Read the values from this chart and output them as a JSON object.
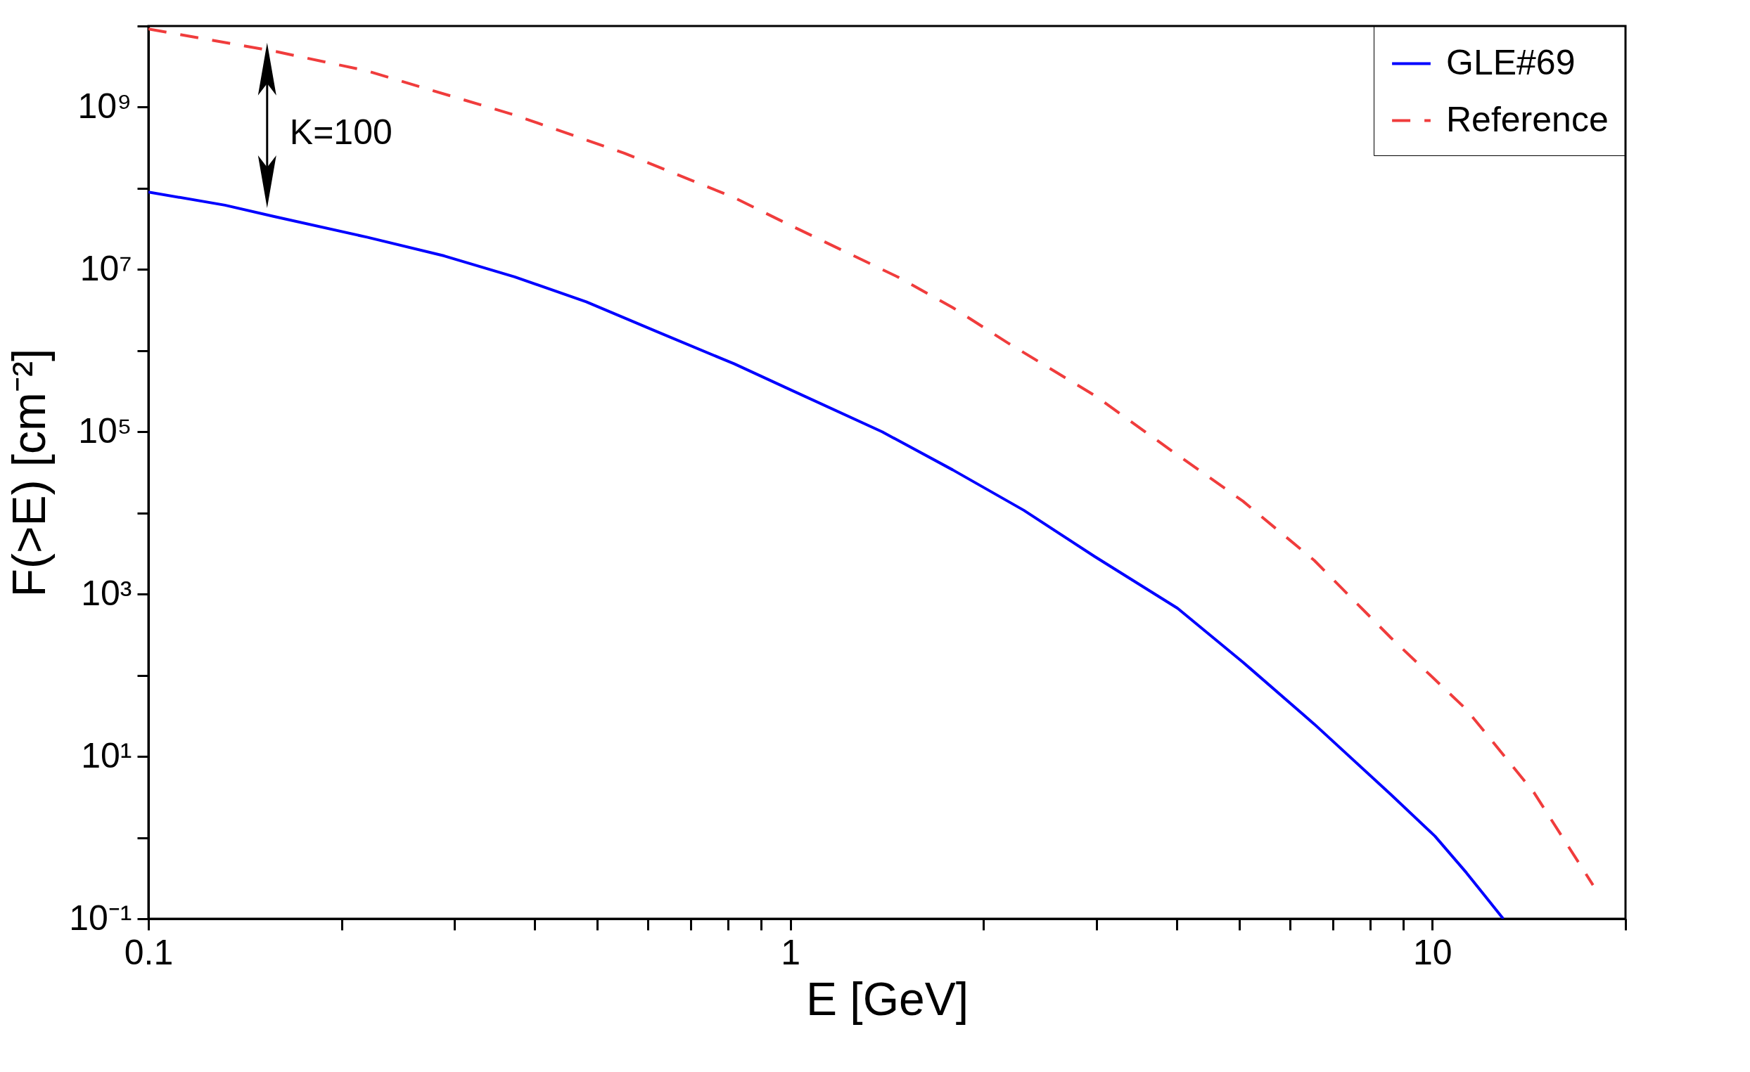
{
  "chart_data": {
    "type": "line",
    "xlabel": "E [GeV]",
    "ylabel": "F(>E) [cm⁻²]",
    "log": "xy",
    "legend": "top right",
    "xlim": [
      0.1,
      20
    ],
    "ylim": [
      0.1,
      10000000000.0
    ],
    "xticks": [
      0.1,
      {
        "value": 0.2,
        "label": null
      },
      {
        "value": 0.3,
        "label": null
      },
      {
        "value": 0.4,
        "label": null
      },
      {
        "value": 0.5,
        "label": null
      },
      {
        "value": 0.6,
        "label": null
      },
      {
        "value": 0.7,
        "label": null
      },
      {
        "value": 0.8,
        "label": null
      },
      {
        "value": 0.9,
        "label": null
      },
      1,
      {
        "value": 2,
        "label": null
      },
      {
        "value": 3,
        "label": null
      },
      {
        "value": 4,
        "label": null
      },
      {
        "value": 5,
        "label": null
      },
      {
        "value": 6,
        "label": null
      },
      {
        "value": 7,
        "label": null
      },
      {
        "value": 8,
        "label": null
      },
      {
        "value": 9,
        "label": null
      },
      10,
      {
        "value": 20,
        "label": null
      }
    ],
    "yticks": [
      {
        "value": 0.1,
        "label": "10⁻¹"
      },
      {
        "value": 1,
        "label": null
      },
      {
        "value": 10,
        "label": "10¹"
      },
      {
        "value": 100,
        "label": null
      },
      {
        "value": 1000,
        "label": "10³"
      },
      {
        "value": 10000,
        "label": null
      },
      {
        "value": 100000,
        "label": "10⁵"
      },
      {
        "value": 1000000,
        "label": null
      },
      {
        "value": 10000000,
        "label": "10⁷"
      },
      {
        "value": 100000000,
        "label": null
      },
      {
        "value": 1000000000,
        "label": "10⁹"
      },
      {
        "value": 10000000000,
        "label": null
      }
    ],
    "annotations": [
      {
        "text": "K=100",
        "x": 0.157,
        "y": 45000000
      }
    ],
    "series": [
      {
        "name": "GLE#69",
        "color": "#0000ff",
        "line_style": "solid",
        "x": [
          0.1,
          0.1316,
          0.157,
          0.219,
          0.289,
          0.372,
          0.481,
          0.621,
          0.817,
          1.0,
          1.39,
          1.79,
          2.31,
          2.98,
          4.01,
          5.07,
          6.55,
          8.62,
          10.1,
          11.3,
          12.9
        ],
        "values": [
          90000000.0,
          62000000.0,
          45000000.0,
          25000000.0,
          14700000.0,
          8100000.0,
          4000000.0,
          1700000.0,
          690000.0,
          330000.0,
          100000.0,
          34000.0,
          10800.0,
          2900.0,
          670,
          145,
          25,
          3.4,
          1.04,
          0.37,
          0.1
        ]
      },
      {
        "name": "Reference",
        "color": "#f03c3c",
        "line_style": "dashed",
        "x": [
          0.1,
          0.157,
          0.219,
          0.372,
          0.552,
          0.817,
          1.0,
          1.47,
          1.79,
          2.18,
          2.98,
          3.93,
          5.07,
          6.55,
          8.62,
          11.3,
          14.4,
          17.8
        ],
        "values": [
          9200000000.0,
          4900000000.0,
          2800000000.0,
          800000000.0,
          270000000.0,
          77000000.0,
          35000000.0,
          8100000.0,
          3400000.0,
          1250000.0,
          280000.0,
          58000.0,
          14000.0,
          2600,
          290,
          38,
          3.6,
          0.26
        ]
      }
    ]
  }
}
